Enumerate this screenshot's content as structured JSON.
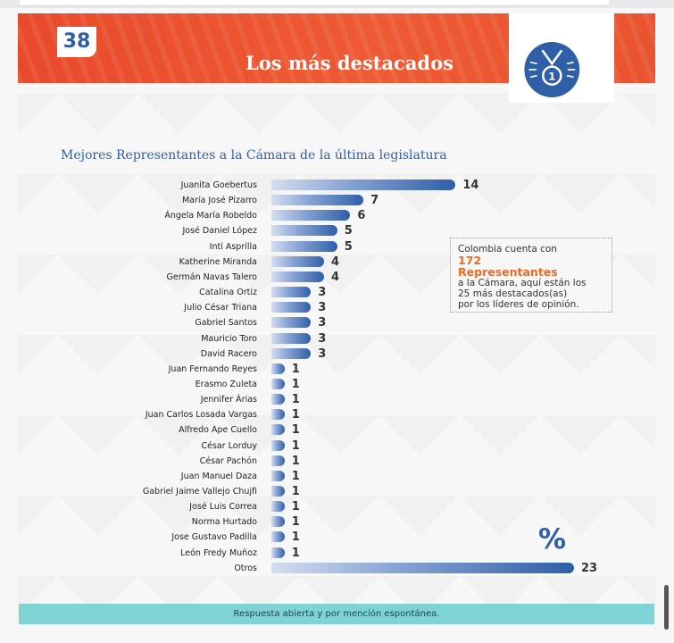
{
  "header": {
    "page_number": "38",
    "title": "Los más destacados",
    "medal_number": "1"
  },
  "subtitle": "Mejores Representantes a la Cámara de la última legislatura",
  "info_box": {
    "line1": "Colombia cuenta con",
    "highlight1": "172",
    "highlight2": "Representantes",
    "line2": "a la Cámara, aquí están  los",
    "line3": "25 más destacados(as)",
    "line4": "por los líderes de opinión."
  },
  "percent_symbol": "%",
  "footer_note": "Respuesta abierta y por mención espontánea.",
  "colors": {
    "banner": "#e84a2b",
    "accent_blue": "#2f5fa7",
    "highlight_orange": "#ef6a1e",
    "footer": "#7fd3d4"
  },
  "chart_data": {
    "type": "bar",
    "orientation": "horizontal",
    "categories": [
      "Juanita Goebertus",
      "María José Pizarro",
      "Ángela María Robeldo",
      "José Daniel López",
      "Inti Asprilla",
      "Katherine Miranda",
      "Germán Navas Talero",
      "Catalina Ortiz",
      "Julio César Triana",
      "Gabriel Santos",
      "Mauricio Toro",
      "David Racero",
      "Juan Fernando Reyes",
      "Erasmo Zuleta",
      "Jennifer Árias",
      "Juan Carlos Losada Vargas",
      "Alfredo Ape Cuello",
      "César Lorduy",
      "César Pachón",
      "Juan Manuel Daza",
      "Gabriel Jaime Vallejo Chujfi",
      "José Luis Correa",
      "Norma Hurtado",
      "Jose Gustavo Padilla",
      "León Fredy Muñoz",
      "Otros"
    ],
    "values": [
      14,
      7,
      6,
      5,
      5,
      4,
      4,
      3,
      3,
      3,
      3,
      3,
      1,
      1,
      1,
      1,
      1,
      1,
      1,
      1,
      1,
      1,
      1,
      1,
      1,
      23
    ],
    "title": "Mejores Representantes a la Cámara de la última legislatura",
    "xlabel": "",
    "ylabel": "",
    "unit": "%",
    "xlim": [
      0,
      23
    ]
  }
}
